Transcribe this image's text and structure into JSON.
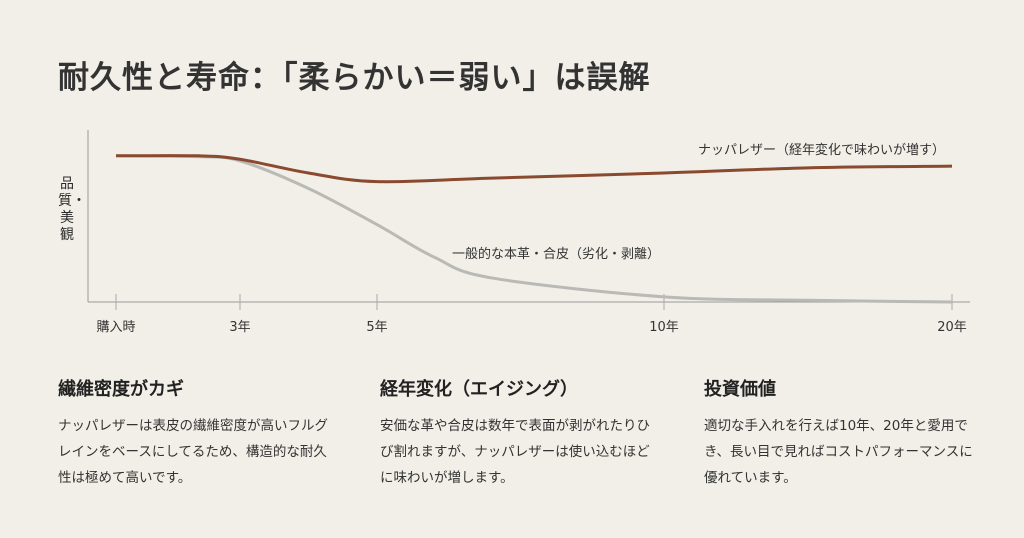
{
  "title": "耐久性と寿命：「柔らかい＝弱い」は誤解",
  "chart_data": {
    "type": "line",
    "ylabel": "品質・美観",
    "xlabel": "",
    "x_ticks": [
      0,
      3,
      5,
      10,
      20
    ],
    "x_tick_labels": [
      "購入時",
      "3年",
      "5年",
      "10年",
      "20年"
    ],
    "ylim": [
      0,
      100
    ],
    "grid": false,
    "series": [
      {
        "name": "ナッパレザー（経年変化で味わいが増す）",
        "color": "#8a4a2f",
        "x": [
          0,
          2,
          3,
          4,
          5,
          7,
          10,
          15,
          20
        ],
        "y": [
          85,
          85,
          83,
          75,
          70,
          72,
          75,
          78,
          79
        ]
      },
      {
        "name": "一般的な本革・合皮（劣化・剥離）",
        "color": "#b9b9b5",
        "x": [
          0,
          2,
          3,
          4,
          5,
          6,
          7,
          10,
          15,
          20
        ],
        "y": [
          85,
          84.5,
          82,
          66,
          45,
          26,
          14,
          3,
          1,
          0
        ]
      }
    ]
  },
  "columns": [
    {
      "heading": "繊維密度がカギ",
      "body": "ナッパレザーは表皮の繊維密度が高いフルグレインをベースにしてるため、構造的な耐久性は極めて高いです。"
    },
    {
      "heading": "経年変化（エイジング）",
      "body": "安価な革や合皮は数年で表面が剥がれたりひび割れますが、ナッパレザーは使い込むほどに味わいが増します。"
    },
    {
      "heading": "投資価値",
      "body": "適切な手入れを行えば10年、20年と愛用でき、長い目で見ればコストパフォーマンスに優れています。"
    }
  ]
}
